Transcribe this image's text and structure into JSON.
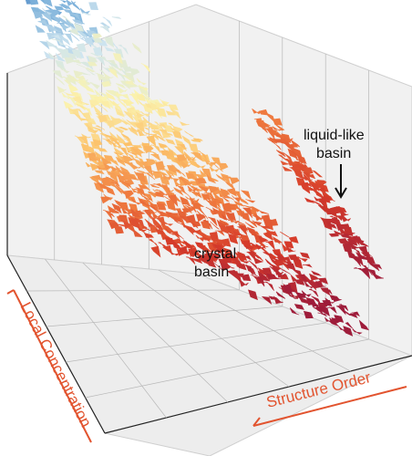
{
  "chart_data": {
    "type": "surface3d",
    "title": "",
    "axis_labels": {
      "x": "Structure Order",
      "y": "Local Concentration",
      "z": ""
    },
    "annotations": [
      {
        "id": "crystal",
        "lines": [
          "crystal",
          "basin"
        ]
      },
      {
        "id": "liquid",
        "lines": [
          "liquid-like",
          "basin"
        ]
      }
    ],
    "basins": [
      {
        "name": "crystal",
        "structure_order_range": [
          0.05,
          0.75
        ],
        "local_concentration_range": [
          0.1,
          0.95
        ]
      },
      {
        "name": "liquid-like",
        "structure_order_range": [
          0.78,
          0.98
        ],
        "local_concentration_range": [
          0.05,
          0.75
        ]
      }
    ],
    "colormap": [
      "#2c4aa0",
      "#6fa8d6",
      "#cfe5f0",
      "#fbf3b0",
      "#fcc26b",
      "#f07d40",
      "#d63b2a",
      "#9e1c3a"
    ],
    "grid": true,
    "colors": {
      "axis_label": "#e2542f",
      "annotation": "#111111",
      "pane": "#f0f0f0",
      "gridline": "#b8b8b8"
    }
  }
}
